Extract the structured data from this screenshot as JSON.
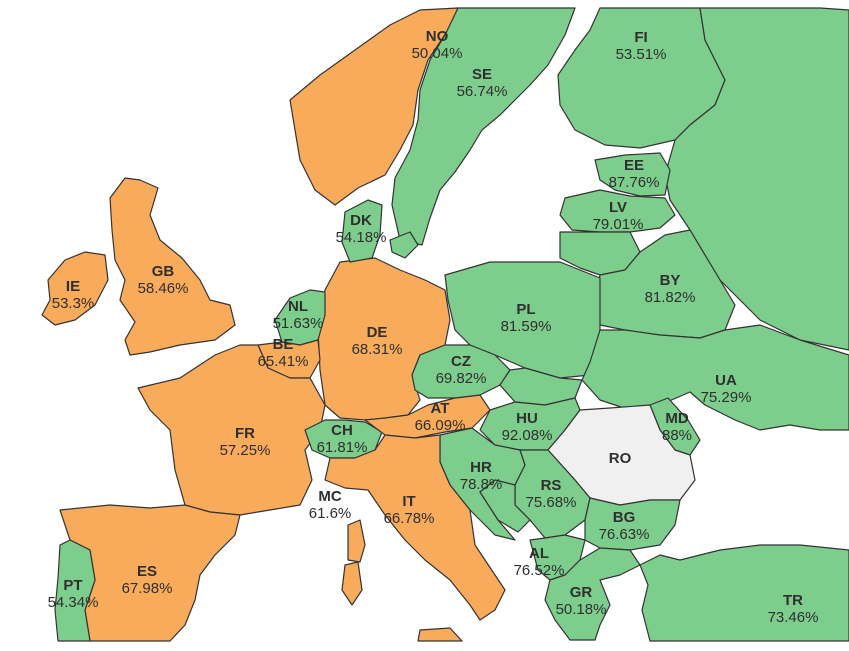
{
  "colors": {
    "green": "#7dce8d",
    "orange": "#f9ab5c",
    "grey": "#f0f0f0",
    "border": "#333333"
  },
  "countries": [
    {
      "code": "NO",
      "value": "50.04%",
      "group": "orange"
    },
    {
      "code": "SE",
      "value": "56.74%",
      "group": "green"
    },
    {
      "code": "FI",
      "value": "53.51%",
      "group": "green"
    },
    {
      "code": "EE",
      "value": "87.76%",
      "group": "green"
    },
    {
      "code": "LV",
      "value": "79.01%",
      "group": "green"
    },
    {
      "code": "DK",
      "value": "54.18%",
      "group": "green"
    },
    {
      "code": "IE",
      "value": "53.3%",
      "group": "orange"
    },
    {
      "code": "GB",
      "value": "58.46%",
      "group": "orange"
    },
    {
      "code": "NL",
      "value": "51.63%",
      "group": "green"
    },
    {
      "code": "BE",
      "value": "65.41%",
      "group": "orange"
    },
    {
      "code": "DE",
      "value": "68.31%",
      "group": "orange"
    },
    {
      "code": "PL",
      "value": "81.59%",
      "group": "green"
    },
    {
      "code": "BY",
      "value": "81.82%",
      "group": "green"
    },
    {
      "code": "CZ",
      "value": "69.82%",
      "group": "green"
    },
    {
      "code": "UA",
      "value": "75.29%",
      "group": "green"
    },
    {
      "code": "AT",
      "value": "66.09%",
      "group": "orange"
    },
    {
      "code": "MD",
      "value": "88%",
      "group": "green"
    },
    {
      "code": "FR",
      "value": "57.25%",
      "group": "orange"
    },
    {
      "code": "CH",
      "value": "61.81%",
      "group": "green"
    },
    {
      "code": "HU",
      "value": "92.08%",
      "group": "green"
    },
    {
      "code": "RO",
      "value": "",
      "group": "grey"
    },
    {
      "code": "HR",
      "value": "78.8%",
      "group": "green"
    },
    {
      "code": "RS",
      "value": "75.68%",
      "group": "green"
    },
    {
      "code": "MC",
      "value": "61.6%",
      "group": "orange"
    },
    {
      "code": "IT",
      "value": "66.78%",
      "group": "orange"
    },
    {
      "code": "BG",
      "value": "76.63%",
      "group": "green"
    },
    {
      "code": "ES",
      "value": "67.98%",
      "group": "orange"
    },
    {
      "code": "PT",
      "value": "54.34%",
      "group": "green"
    },
    {
      "code": "AL",
      "value": "76.52%",
      "group": "green"
    },
    {
      "code": "GR",
      "value": "50.18%",
      "group": "green"
    },
    {
      "code": "TR",
      "value": "73.46%",
      "group": "green"
    }
  ]
}
